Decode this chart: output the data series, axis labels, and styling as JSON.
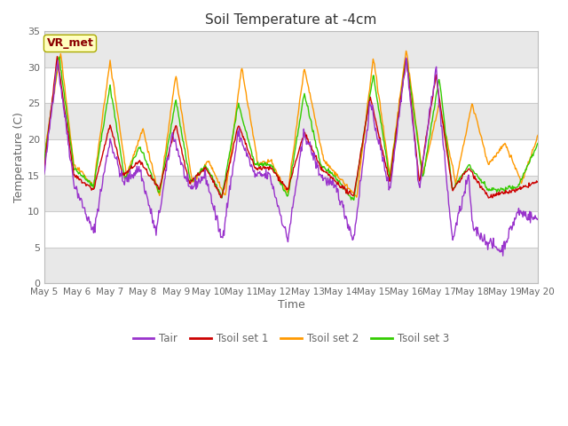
{
  "title": "Soil Temperature at -4cm",
  "xlabel": "Time",
  "ylabel": "Temperature (C)",
  "ylim": [
    0,
    35
  ],
  "annotation_text": "VR_met",
  "annotation_color": "#8B0000",
  "annotation_bg": "#FFFFC0",
  "series": {
    "Tair": {
      "color": "#9933CC",
      "lw": 1.0
    },
    "Tsoil set 1": {
      "color": "#CC0000",
      "lw": 1.0
    },
    "Tsoil set 2": {
      "color": "#FF9900",
      "lw": 1.0
    },
    "Tsoil set 3": {
      "color": "#33CC00",
      "lw": 1.0
    }
  },
  "bg_color": "#FFFFFF",
  "plot_bg_light": "#FFFFFF",
  "plot_bg_dark": "#E8E8E8",
  "grid_color": "#CCCCCC",
  "tick_label_color": "#666666",
  "title_color": "#333333",
  "yticks": [
    0,
    5,
    10,
    15,
    20,
    25,
    30,
    35
  ],
  "band_ranges": [
    [
      0,
      5
    ],
    [
      10,
      15
    ],
    [
      20,
      25
    ],
    [
      30,
      35
    ]
  ],
  "xtick_labels": [
    "May 5",
    "May 6",
    "May 7",
    "May 8",
    "May 9",
    "May 10",
    "May 11",
    "May 12",
    "May 13",
    "May 14",
    "May 15",
    "May 16",
    "May 17",
    "May 18",
    "May 19",
    "May 20"
  ]
}
